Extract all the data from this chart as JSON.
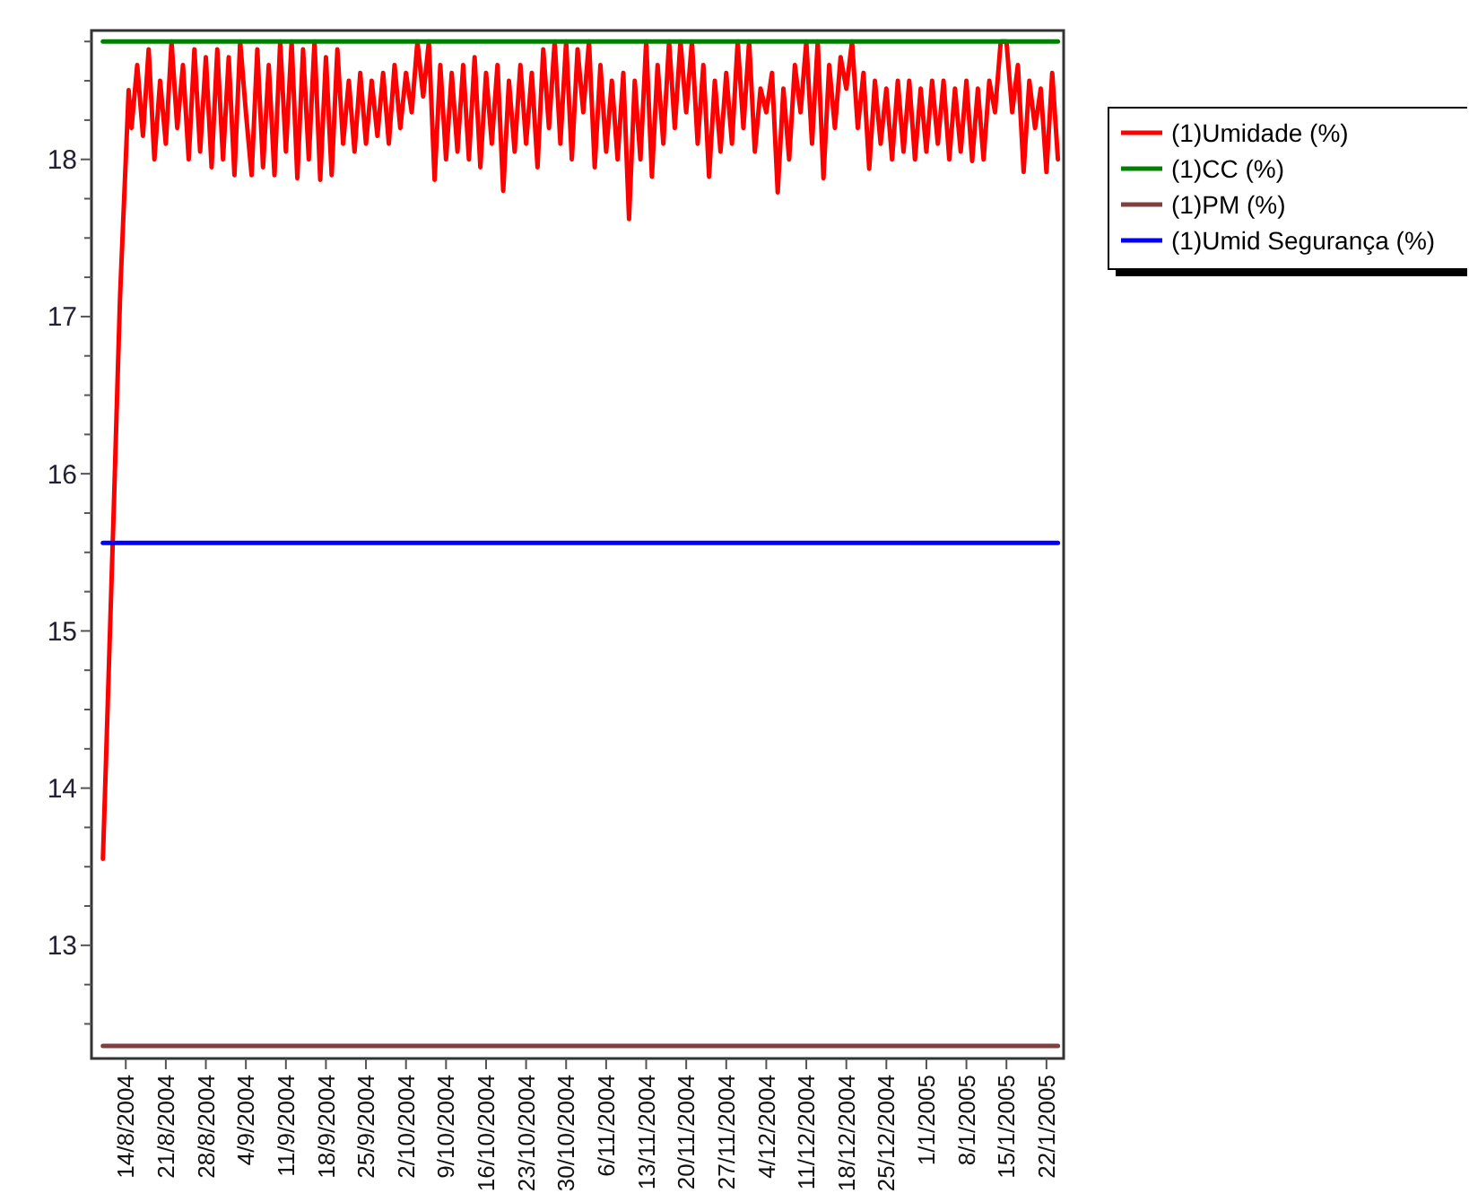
{
  "chart_data": {
    "type": "line",
    "xlim": [
      "2004-08-08",
      "2005-01-25"
    ],
    "ylim": [
      12.28,
      18.82
    ],
    "yticks": [
      {
        "value": 12.5,
        "label": null
      },
      {
        "value": 12.75,
        "label": null
      },
      13,
      {
        "value": 13.25,
        "label": null
      },
      {
        "value": 13.5,
        "label": null
      },
      {
        "value": 13.75,
        "label": null
      },
      14,
      {
        "value": 14.25,
        "label": null
      },
      {
        "value": 14.5,
        "label": null
      },
      {
        "value": 14.75,
        "label": null
      },
      15,
      {
        "value": 15.25,
        "label": null
      },
      {
        "value": 15.5,
        "label": null
      },
      {
        "value": 15.75,
        "label": null
      },
      16,
      {
        "value": 16.25,
        "label": null
      },
      {
        "value": 16.5,
        "label": null
      },
      {
        "value": 16.75,
        "label": null
      },
      17,
      {
        "value": 17.25,
        "label": null
      },
      {
        "value": 17.5,
        "label": null
      },
      {
        "value": 17.75,
        "label": null
      },
      18,
      {
        "value": 18.25,
        "label": null
      },
      {
        "value": 18.5,
        "label": null
      },
      {
        "value": 18.75,
        "label": null
      }
    ],
    "xticks": [
      {
        "value": "2004-08-14",
        "label": "14/8/2004"
      },
      {
        "value": "2004-08-21",
        "label": "21/8/2004"
      },
      {
        "value": "2004-08-28",
        "label": "28/8/2004"
      },
      {
        "value": "2004-09-04",
        "label": "4/9/2004"
      },
      {
        "value": "2004-09-11",
        "label": "11/9/2004"
      },
      {
        "value": "2004-09-18",
        "label": "18/9/2004"
      },
      {
        "value": "2004-09-25",
        "label": "25/9/2004"
      },
      {
        "value": "2004-10-02",
        "label": "2/10/2004"
      },
      {
        "value": "2004-10-09",
        "label": "9/10/2004"
      },
      {
        "value": "2004-10-16",
        "label": "16/10/2004"
      },
      {
        "value": "2004-10-23",
        "label": "23/10/2004"
      },
      {
        "value": "2004-10-30",
        "label": "30/10/2004"
      },
      {
        "value": "2004-11-06",
        "label": "6/11/2004"
      },
      {
        "value": "2004-11-13",
        "label": "13/11/2004"
      },
      {
        "value": "2004-11-20",
        "label": "20/11/2004"
      },
      {
        "value": "2004-11-27",
        "label": "27/11/2004"
      },
      {
        "value": "2004-12-04",
        "label": "4/12/2004"
      },
      {
        "value": "2004-12-11",
        "label": "11/12/2004"
      },
      {
        "value": "2004-12-18",
        "label": "18/12/2004"
      },
      {
        "value": "2004-12-25",
        "label": "25/12/2004"
      },
      {
        "value": "2005-01-01",
        "label": "1/1/2005"
      },
      {
        "value": "2005-01-08",
        "label": "8/1/2005"
      },
      {
        "value": "2005-01-15",
        "label": "15/1/2005"
      },
      {
        "value": "2005-01-22",
        "label": "22/1/2005"
      }
    ],
    "grid": false,
    "legend": "top right",
    "marker": "none",
    "line_style": "solid",
    "series": [
      {
        "name": "(1)Umidade (%)",
        "color": "#ff0000",
        "x": [
          "2004-08-10T00:00",
          "2004-08-10T12:00",
          "2004-08-11T00:00",
          "2004-08-11T12:00",
          "2004-08-12T00:00",
          "2004-08-12T12:00",
          "2004-08-13T00:00",
          "2004-08-13T12:00",
          "2004-08-14T00:00",
          "2004-08-14T12:00",
          "2004-08-15",
          "2004-08-16",
          "2004-08-17",
          "2004-08-18",
          "2004-08-19",
          "2004-08-20",
          "2004-08-21",
          "2004-08-22",
          "2004-08-23",
          "2004-08-24",
          "2004-08-25",
          "2004-08-26",
          "2004-08-27",
          "2004-08-28",
          "2004-08-29",
          "2004-08-30",
          "2004-08-31",
          "2004-09-01",
          "2004-09-02",
          "2004-09-03",
          "2004-09-04",
          "2004-09-05",
          "2004-09-06",
          "2004-09-07",
          "2004-09-08",
          "2004-09-09",
          "2004-09-10",
          "2004-09-11",
          "2004-09-12",
          "2004-09-13",
          "2004-09-14",
          "2004-09-15",
          "2004-09-16",
          "2004-09-17",
          "2004-09-18",
          "2004-09-19",
          "2004-09-20",
          "2004-09-21",
          "2004-09-22",
          "2004-09-23",
          "2004-09-24",
          "2004-09-25",
          "2004-09-26",
          "2004-09-27",
          "2004-09-28",
          "2004-09-29",
          "2004-09-30",
          "2004-10-01",
          "2004-10-02",
          "2004-10-03",
          "2004-10-04",
          "2004-10-05",
          "2004-10-06",
          "2004-10-07",
          "2004-10-08",
          "2004-10-09",
          "2004-10-10",
          "2004-10-11",
          "2004-10-12",
          "2004-10-13",
          "2004-10-14",
          "2004-10-15",
          "2004-10-16",
          "2004-10-17",
          "2004-10-18",
          "2004-10-19",
          "2004-10-20",
          "2004-10-21",
          "2004-10-22",
          "2004-10-23",
          "2004-10-24",
          "2004-10-25",
          "2004-10-26",
          "2004-10-27",
          "2004-10-28",
          "2004-10-29",
          "2004-10-30",
          "2004-10-31",
          "2004-11-01",
          "2004-11-02",
          "2004-11-03",
          "2004-11-04",
          "2004-11-05",
          "2004-11-06",
          "2004-11-07",
          "2004-11-08",
          "2004-11-09",
          "2004-11-10",
          "2004-11-11",
          "2004-11-12",
          "2004-11-13",
          "2004-11-14",
          "2004-11-15",
          "2004-11-16",
          "2004-11-17",
          "2004-11-18",
          "2004-11-19",
          "2004-11-20",
          "2004-11-21",
          "2004-11-22",
          "2004-11-23",
          "2004-11-24",
          "2004-11-25",
          "2004-11-26",
          "2004-11-27",
          "2004-11-28",
          "2004-11-29",
          "2004-11-30",
          "2004-12-01",
          "2004-12-02",
          "2004-12-03",
          "2004-12-04",
          "2004-12-05",
          "2004-12-06",
          "2004-12-07",
          "2004-12-08",
          "2004-12-09",
          "2004-12-10",
          "2004-12-11",
          "2004-12-12",
          "2004-12-13",
          "2004-12-14",
          "2004-12-15",
          "2004-12-16",
          "2004-12-17",
          "2004-12-18",
          "2004-12-19",
          "2004-12-20",
          "2004-12-21",
          "2004-12-22",
          "2004-12-23",
          "2004-12-24",
          "2004-12-25",
          "2004-12-26",
          "2004-12-27",
          "2004-12-28",
          "2004-12-29",
          "2004-12-30",
          "2004-12-31",
          "2005-01-01",
          "2005-01-02",
          "2005-01-03",
          "2005-01-04",
          "2005-01-05",
          "2005-01-06",
          "2005-01-07",
          "2005-01-08",
          "2005-01-09",
          "2005-01-10",
          "2005-01-11",
          "2005-01-12",
          "2005-01-13",
          "2005-01-14",
          "2005-01-15",
          "2005-01-16",
          "2005-01-17",
          "2005-01-18",
          "2005-01-19",
          "2005-01-20",
          "2005-01-21",
          "2005-01-22",
          "2005-01-23",
          "2005-01-24"
        ],
        "values": [
          13.55,
          14.13,
          14.72,
          15.31,
          15.9,
          16.52,
          17.13,
          17.57,
          18.0,
          18.44,
          18.2,
          18.6,
          18.15,
          18.7,
          18.0,
          18.5,
          18.1,
          18.75,
          18.2,
          18.6,
          18.0,
          18.7,
          18.05,
          18.65,
          17.95,
          18.7,
          18.0,
          18.65,
          17.9,
          18.75,
          18.3,
          17.9,
          18.7,
          17.95,
          18.6,
          17.9,
          18.75,
          18.05,
          18.75,
          17.88,
          18.7,
          18.0,
          18.75,
          17.87,
          18.65,
          17.9,
          18.7,
          18.1,
          18.5,
          18.05,
          18.55,
          18.1,
          18.5,
          18.15,
          18.55,
          18.1,
          18.6,
          18.2,
          18.55,
          18.3,
          18.75,
          18.4,
          18.75,
          17.87,
          18.6,
          18.0,
          18.55,
          18.05,
          18.6,
          18.0,
          18.65,
          17.95,
          18.55,
          18.1,
          18.6,
          17.8,
          18.5,
          18.05,
          18.6,
          18.1,
          18.55,
          17.95,
          18.7,
          18.2,
          18.75,
          18.1,
          18.75,
          18.0,
          18.7,
          18.3,
          18.75,
          17.95,
          18.6,
          18.05,
          18.5,
          18.0,
          18.55,
          17.62,
          18.5,
          18.0,
          18.75,
          17.89,
          18.6,
          18.1,
          18.75,
          18.2,
          18.75,
          18.3,
          18.75,
          18.1,
          18.6,
          17.89,
          18.5,
          18.05,
          18.55,
          18.1,
          18.75,
          18.2,
          18.75,
          18.05,
          18.45,
          18.3,
          18.55,
          17.79,
          18.45,
          18.0,
          18.6,
          18.3,
          18.75,
          18.1,
          18.75,
          17.88,
          18.6,
          18.2,
          18.65,
          18.45,
          18.75,
          18.2,
          18.55,
          17.94,
          18.5,
          18.1,
          18.45,
          18.0,
          18.5,
          18.05,
          18.5,
          18.0,
          18.45,
          18.05,
          18.5,
          18.1,
          18.5,
          18.0,
          18.45,
          18.05,
          18.5,
          17.99,
          18.45,
          18.0,
          18.5,
          18.3,
          18.75,
          18.75,
          18.3,
          18.6,
          17.92,
          18.5,
          18.2,
          18.45,
          17.92,
          18.55,
          18.0
        ]
      },
      {
        "name": "(1)CC (%)",
        "color": "#008000",
        "x": [
          "2004-08-10",
          "2005-01-24"
        ],
        "values": [
          18.75,
          18.75
        ]
      },
      {
        "name": "(1)PM (%)",
        "color": "#804040",
        "x": [
          "2004-08-10",
          "2005-01-24"
        ],
        "values": [
          12.36,
          12.36
        ]
      },
      {
        "name": "(1)Umid Segurança (%)",
        "color": "#0000ff",
        "x": [
          "2004-08-10",
          "2005-01-24"
        ],
        "values": [
          15.56,
          15.56
        ]
      }
    ]
  }
}
